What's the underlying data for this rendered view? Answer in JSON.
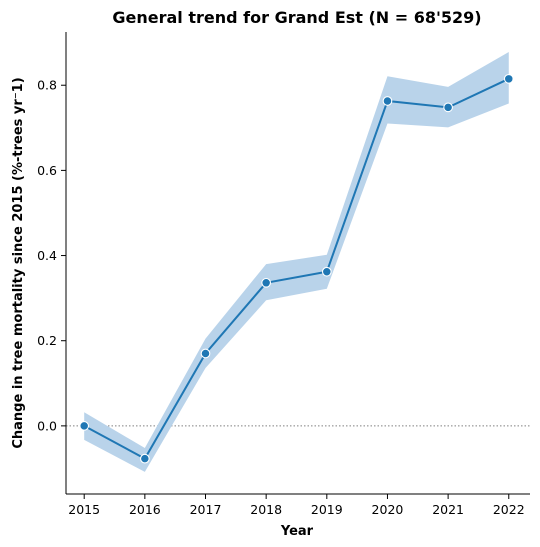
{
  "chart_data": {
    "type": "line",
    "title": "General trend for Grand Est  (N = 68'529)",
    "xlabel": "Year",
    "ylabel": "Change in tree mortality since 2015 (%-trees yr⁻1)",
    "x": [
      2015,
      2016,
      2017,
      2018,
      2019,
      2020,
      2021,
      2022
    ],
    "xticks": [
      "2015",
      "2016",
      "2017",
      "2018",
      "2019",
      "2020",
      "2021",
      "2022"
    ],
    "yticks": [
      "0.0",
      "0.2",
      "0.4",
      "0.6",
      "0.8"
    ],
    "xlim": [
      2014.7,
      2022.35
    ],
    "ylim": [
      -0.16,
      0.925
    ],
    "series": [
      {
        "values": [
          0.0,
          -0.077,
          0.17,
          0.336,
          0.362,
          0.763,
          0.748,
          0.815
        ],
        "lower": [
          -0.033,
          -0.108,
          0.136,
          0.295,
          0.322,
          0.71,
          0.701,
          0.757
        ],
        "upper": [
          0.032,
          -0.052,
          0.205,
          0.38,
          0.402,
          0.821,
          0.796,
          0.878
        ],
        "color": "#1f77b4",
        "band_color": "#b9d3ea"
      }
    ],
    "reference_line": {
      "y": 0.0,
      "style": "dotted",
      "color": "#808080"
    },
    "grid": false,
    "legend": "none"
  }
}
